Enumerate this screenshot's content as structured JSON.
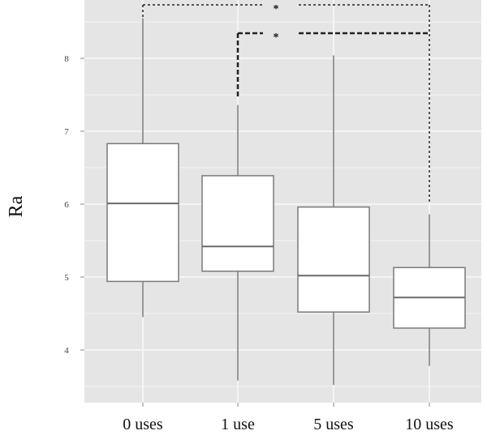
{
  "chart_data": {
    "type": "box",
    "title": "",
    "xlabel": "",
    "ylabel": "Ra",
    "ylim": [
      3.28,
      8.8
    ],
    "yticks": [
      4,
      5,
      6,
      7,
      8
    ],
    "grid": true,
    "categories": [
      "0 uses",
      "1 use",
      "5 uses",
      "10 uses"
    ],
    "boxes": [
      {
        "label": "0 uses",
        "whisker_low": 4.45,
        "q1": 4.94,
        "median": 6.01,
        "q3": 6.83,
        "whisker_high": 8.55
      },
      {
        "label": "1 use",
        "whisker_low": 3.58,
        "q1": 5.08,
        "median": 5.42,
        "q3": 6.39,
        "whisker_high": 7.36
      },
      {
        "label": "5 uses",
        "whisker_low": 3.52,
        "q1": 4.52,
        "median": 5.02,
        "q3": 5.96,
        "whisker_high": 8.04
      },
      {
        "label": "10 uses",
        "whisker_low": 3.78,
        "q1": 4.3,
        "median": 4.72,
        "q3": 5.13,
        "whisker_high": 5.86
      }
    ],
    "annotations": [
      {
        "type": "significance-bracket",
        "from": "0 uses",
        "to": "10 uses",
        "label": "*"
      },
      {
        "type": "significance-bracket",
        "from": "1 use",
        "to": "10 uses",
        "label": "*"
      }
    ]
  },
  "axis": {
    "y_title": "Ra",
    "y_ticks": [
      "4",
      "5",
      "6",
      "7",
      "8"
    ],
    "x_ticks": [
      "0 uses",
      "1 use",
      "5 uses",
      "10 uses"
    ]
  },
  "colors": {
    "panel_bg": "#e5e5e5",
    "grid": "#f5f5f5",
    "box_fill": "#ffffff",
    "box_line": "#7a7a7a",
    "bracket": "#222222"
  }
}
